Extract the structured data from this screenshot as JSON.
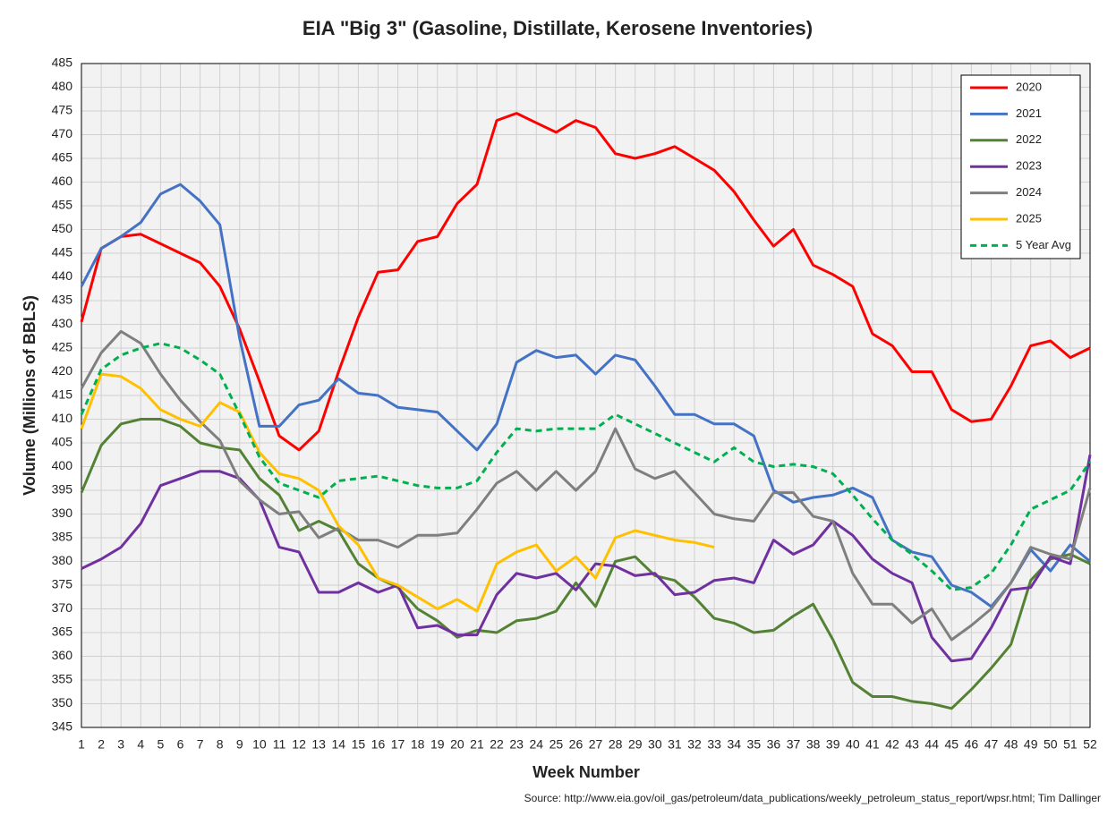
{
  "chart_data": {
    "type": "line",
    "title": "EIA \"Big 3\" (Gasoline, Distillate, Kerosene Inventories)",
    "x_label": "Week Number",
    "y_label": "Volume (Millions of BBLS)",
    "source": "Source: http://www.eia.gov/oil_gas/petroleum/data_publications/weekly_petroleum_status_report/wpsr.html; Tim Dallinger",
    "categories": [
      1,
      2,
      3,
      4,
      5,
      6,
      7,
      8,
      9,
      10,
      11,
      12,
      13,
      14,
      15,
      16,
      17,
      18,
      19,
      20,
      21,
      22,
      23,
      24,
      25,
      26,
      27,
      28,
      29,
      30,
      31,
      32,
      33,
      34,
      35,
      36,
      37,
      38,
      39,
      40,
      41,
      42,
      43,
      44,
      45,
      46,
      47,
      48,
      49,
      50,
      51,
      52
    ],
    "ylim": [
      345,
      485
    ],
    "yticks": [
      345,
      350,
      355,
      360,
      365,
      370,
      375,
      380,
      385,
      390,
      395,
      400,
      405,
      410,
      415,
      420,
      425,
      430,
      435,
      440,
      445,
      450,
      455,
      460,
      465,
      470,
      475,
      480,
      485
    ],
    "grid": true,
    "legend": "top-right",
    "series": [
      {
        "name": "2020",
        "color": "#ff0000",
        "values": [
          430.5,
          446,
          448.5,
          449,
          447,
          445,
          443,
          438,
          429,
          418,
          406.5,
          403.5,
          407.5,
          420,
          431.5,
          441,
          441.5,
          447.5,
          448.5,
          455.5,
          459.5,
          473,
          474.5,
          472.5,
          470.5,
          473,
          471.5,
          466,
          465,
          466,
          467.5,
          465,
          462.5,
          458,
          452,
          446.5,
          450,
          442.5,
          440.5,
          438,
          428,
          425.5,
          420,
          420,
          412,
          409.5,
          410,
          417,
          425.5,
          426.5,
          423,
          425
        ]
      },
      {
        "name": "2021",
        "color": "#4472c4",
        "values": [
          438,
          446,
          448.5,
          451.5,
          457.5,
          459.5,
          456,
          451,
          427,
          408.5,
          408.5,
          413,
          414,
          418.5,
          415.5,
          415,
          412.5,
          412,
          411.5,
          407.5,
          403.5,
          409,
          422,
          424.5,
          423,
          423.5,
          419.5,
          423.5,
          422.5,
          417,
          411,
          411,
          409,
          409,
          406.5,
          395,
          392.5,
          393.5,
          394,
          395.5,
          393.5,
          384.5,
          382,
          381,
          375,
          373.5,
          370.5,
          375.5,
          382.5,
          378,
          383.5,
          380
        ]
      },
      {
        "name": "2022",
        "color": "#548235",
        "values": [
          394.5,
          404.5,
          409,
          410,
          410,
          408.5,
          405,
          404,
          403.5,
          397.5,
          394,
          386.5,
          388.5,
          386.5,
          379.5,
          376.5,
          374.5,
          370,
          367.5,
          364,
          365.5,
          365,
          367.5,
          368,
          369.5,
          375.5,
          370.5,
          380,
          381,
          377,
          376,
          372.5,
          368,
          367,
          365,
          365.5,
          368.5,
          371,
          363.5,
          354.5,
          351.5,
          351.5,
          350.5,
          350,
          349,
          353,
          357.5,
          362.5,
          376,
          380.5,
          381.5,
          379.5
        ]
      },
      {
        "name": "2023",
        "color": "#7030a0",
        "values": [
          378.5,
          380.5,
          383,
          388,
          396,
          397.5,
          399,
          399,
          397.5,
          393,
          383,
          382,
          373.5,
          373.5,
          375.5,
          373.5,
          375,
          366,
          366.5,
          364.5,
          364.5,
          373,
          377.5,
          376.5,
          377.5,
          374,
          379.5,
          379,
          377,
          377.5,
          373,
          373.5,
          376,
          376.5,
          375.5,
          384.5,
          381.5,
          383.5,
          388.5,
          385.5,
          380.5,
          377.5,
          375.5,
          364,
          359,
          359.5,
          366,
          374,
          374.5,
          381,
          379.5,
          402.5
        ]
      },
      {
        "name": "2024",
        "color": "#7f7f7f",
        "values": [
          416.5,
          424,
          428.5,
          426,
          419.5,
          414,
          409.5,
          405.5,
          397,
          393,
          390,
          390.5,
          385,
          387,
          384.5,
          384.5,
          383,
          385.5,
          385.5,
          386,
          391,
          396.5,
          399,
          395,
          399,
          395,
          399,
          408,
          399.5,
          397.5,
          399,
          394.5,
          390,
          389,
          388.5,
          394.5,
          394.5,
          389.5,
          388.5,
          377.5,
          371,
          371,
          367,
          370,
          363.5,
          366.5,
          370,
          375.5,
          383,
          381.5,
          380.5,
          395.5
        ]
      },
      {
        "name": "2025",
        "color": "#ffc000",
        "values": [
          408,
          419.5,
          419,
          416.5,
          412,
          410,
          408.5,
          413.5,
          411.5,
          403,
          398.5,
          397.5,
          395,
          387.5,
          383.5,
          376.5,
          375,
          372.5,
          370,
          372,
          369.5,
          379.5,
          382,
          383.5,
          378,
          381,
          376.5,
          385,
          386.5,
          385.5,
          384.5,
          384,
          383,
          null,
          null,
          null,
          null,
          null,
          null,
          null,
          null,
          null,
          null,
          null,
          null,
          null,
          null,
          null,
          null,
          null,
          null,
          null
        ]
      },
      {
        "name": "5 Year Avg",
        "color": "#00b050",
        "dashed": true,
        "values": [
          411,
          420.5,
          423.5,
          425,
          426,
          425,
          422.5,
          419.5,
          411,
          402,
          396.5,
          395,
          393.5,
          397,
          397.5,
          398,
          397,
          396,
          395.5,
          395.5,
          397,
          403,
          408,
          407.5,
          408,
          408,
          408,
          411,
          409,
          407,
          405,
          403,
          401,
          404,
          401,
          400,
          400.5,
          400,
          398.5,
          394,
          389,
          384.5,
          381.5,
          378,
          374,
          374.5,
          377.5,
          383.5,
          391,
          393,
          395,
          401
        ]
      }
    ]
  }
}
